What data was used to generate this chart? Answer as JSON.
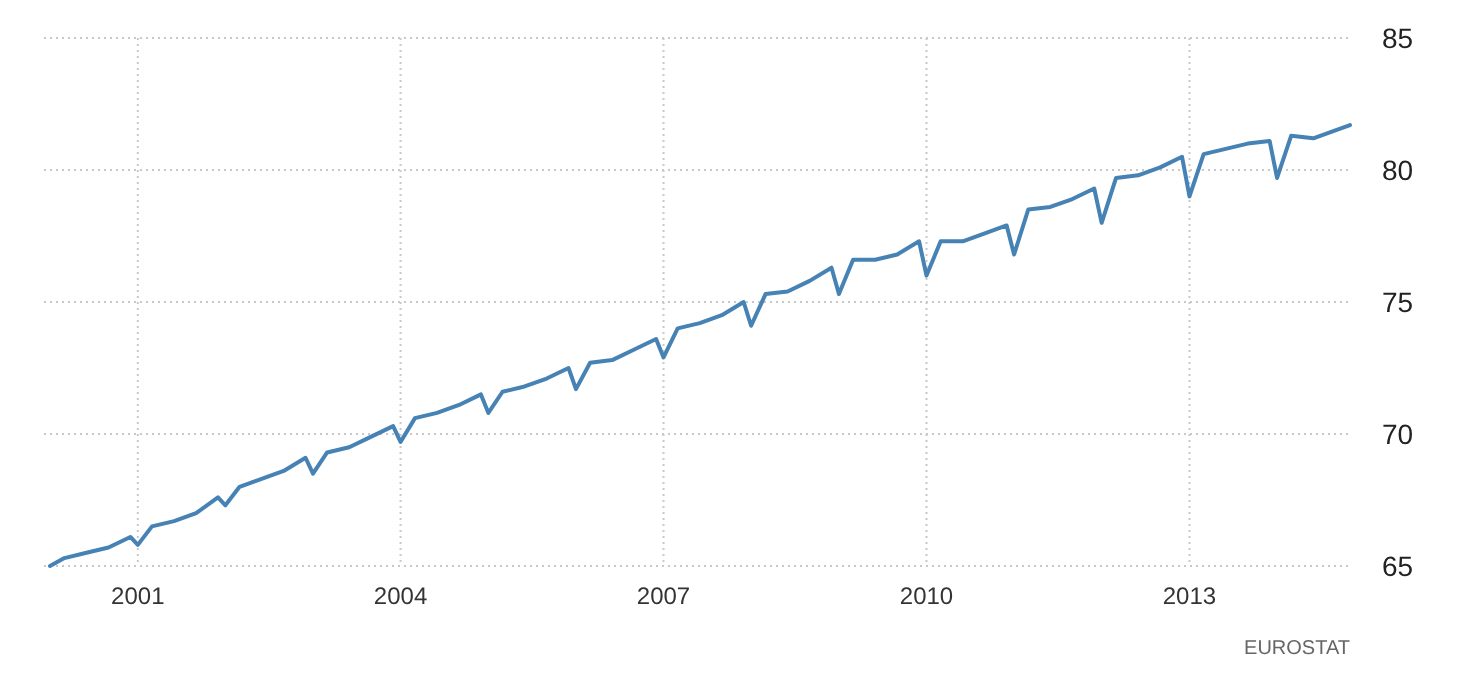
{
  "chart_data": {
    "type": "line",
    "x": [
      "2000-01",
      "2000-03",
      "2000-06",
      "2000-09",
      "2000-12",
      "2001-01",
      "2001-03",
      "2001-06",
      "2001-09",
      "2001-12",
      "2002-01",
      "2002-03",
      "2002-06",
      "2002-09",
      "2002-12",
      "2003-01",
      "2003-03",
      "2003-06",
      "2003-09",
      "2003-12",
      "2004-01",
      "2004-03",
      "2004-06",
      "2004-09",
      "2004-12",
      "2005-01",
      "2005-03",
      "2005-06",
      "2005-09",
      "2005-12",
      "2006-01",
      "2006-03",
      "2006-06",
      "2006-09",
      "2006-12",
      "2007-01",
      "2007-03",
      "2007-06",
      "2007-09",
      "2007-12",
      "2008-01",
      "2008-03",
      "2008-06",
      "2008-09",
      "2008-12",
      "2009-01",
      "2009-03",
      "2009-06",
      "2009-09",
      "2009-12",
      "2010-01",
      "2010-03",
      "2010-06",
      "2010-09",
      "2010-12",
      "2011-01",
      "2011-03",
      "2011-06",
      "2011-09",
      "2011-12",
      "2012-01",
      "2012-03",
      "2012-06",
      "2012-09",
      "2012-12",
      "2013-01",
      "2013-03",
      "2013-06",
      "2013-09",
      "2013-12",
      "2014-01",
      "2014-03",
      "2014-06",
      "2014-09",
      "2014-11"
    ],
    "series": [
      {
        "color": "#4682b4",
        "values": [
          65.0,
          65.3,
          65.5,
          65.7,
          66.1,
          65.8,
          66.5,
          66.7,
          67.0,
          67.6,
          67.3,
          68.0,
          68.3,
          68.6,
          69.1,
          68.5,
          69.3,
          69.5,
          69.9,
          70.3,
          69.7,
          70.6,
          70.8,
          71.1,
          71.5,
          70.8,
          71.6,
          71.8,
          72.1,
          72.5,
          71.7,
          72.7,
          72.8,
          73.2,
          73.6,
          72.9,
          74.0,
          74.2,
          74.5,
          75.0,
          74.1,
          75.3,
          75.4,
          75.8,
          76.3,
          75.3,
          76.6,
          76.6,
          76.8,
          77.3,
          76.0,
          77.3,
          77.3,
          77.6,
          77.9,
          76.8,
          78.5,
          78.6,
          78.9,
          79.3,
          78.0,
          79.7,
          79.8,
          80.1,
          80.5,
          79.0,
          80.6,
          80.8,
          81.0,
          81.1,
          79.7,
          81.3,
          81.2,
          81.5,
          81.7
        ]
      }
    ],
    "xlim": [
      "2000-01",
      "2014-11"
    ],
    "xticks": [
      "2001",
      "2004",
      "2007",
      "2010",
      "2013"
    ],
    "ylim": [
      65,
      85
    ],
    "yticks": [
      65,
      70,
      75,
      80,
      85
    ],
    "grid": true,
    "line_style": "solid",
    "marker": "none",
    "annotations": [
      "EUROSTAT"
    ]
  }
}
